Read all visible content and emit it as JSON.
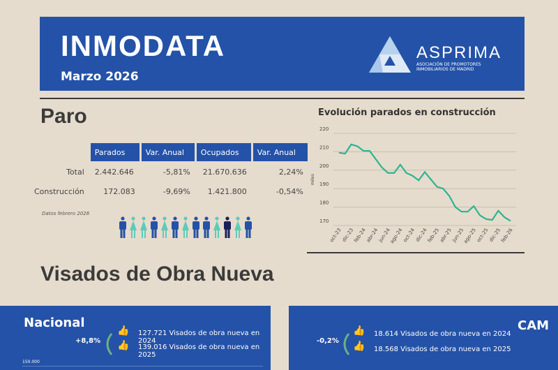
{
  "header": {
    "title": "INMODATA",
    "subtitle": "Marzo 2026",
    "logo_name": "ASPRIMA",
    "logo_sub": "ASOCIACIÓN DE PROMOTORES INMOBILIARIOS DE MADRID"
  },
  "paro": {
    "heading": "Paro",
    "columns": [
      "",
      "Parados",
      "Var. Anual",
      "Ocupados",
      "Var. Anual"
    ],
    "rows": [
      [
        "Total",
        "2.442.646",
        "-5,81%",
        "21.670.636",
        "2,24%"
      ],
      [
        "Construcción",
        "172.083",
        "-9,69%",
        "1.421.800",
        "-0,54%"
      ]
    ],
    "note": "Datos febrero 2026",
    "people": [
      "m",
      "f",
      "f",
      "m",
      "f",
      "m",
      "f",
      "m",
      "m",
      "f",
      "m-dark",
      "f",
      "m"
    ],
    "colors": {
      "male": "#2452a8",
      "female": "#5ecbb8",
      "dark": "#1a1f5c"
    }
  },
  "chart_data": {
    "type": "line",
    "title": "Evolución parados en construcción",
    "ylabel": "miles",
    "ylim": [
      170,
      220
    ],
    "yticks": [
      170,
      180,
      190,
      200,
      210,
      220
    ],
    "grid": true,
    "color": "#2bb592",
    "tick_labels": [
      "oct-23",
      "dic-23",
      "feb-24",
      "abr-24",
      "jun-24",
      "ago-24",
      "oct-24",
      "dic-24",
      "feb-25",
      "abr-25",
      "jun-25",
      "ago-25",
      "oct-25",
      "dic-25",
      "feb-26"
    ],
    "x": [
      "oct-23",
      "nov-23",
      "dic-23",
      "ene-24",
      "feb-24",
      "mar-24",
      "abr-24",
      "may-24",
      "jun-24",
      "jul-24",
      "ago-24",
      "sep-24",
      "oct-24",
      "nov-24",
      "dic-24",
      "ene-25",
      "feb-25",
      "mar-25",
      "abr-25",
      "may-25",
      "jun-25",
      "jul-25",
      "ago-25",
      "sep-25",
      "oct-25",
      "nov-25",
      "dic-25",
      "ene-26",
      "feb-26"
    ],
    "values": [
      209.5,
      209,
      214,
      213,
      210.5,
      210.5,
      206,
      201.5,
      198.5,
      198.5,
      203,
      198.5,
      197,
      194.5,
      199,
      195,
      191,
      190,
      186,
      180,
      177.5,
      177.5,
      180.5,
      175.5,
      173.5,
      173,
      178,
      174.5,
      172.5
    ]
  },
  "visados": {
    "heading": "Visados de Obra Nueva",
    "nacional": {
      "title": "Nacional",
      "pct": "+8,8%",
      "line1": "127.721 Visados de obra nueva en 2024",
      "line2": "139.016 Visados de obra nueva en 2025",
      "axis_top": "150.000"
    },
    "cam": {
      "title": "CAM",
      "pct": "-0,2%",
      "line1": "18.614 Visados de obra nueva en 2024",
      "line2": "18.568 Visados de obra nueva en 2025"
    }
  }
}
